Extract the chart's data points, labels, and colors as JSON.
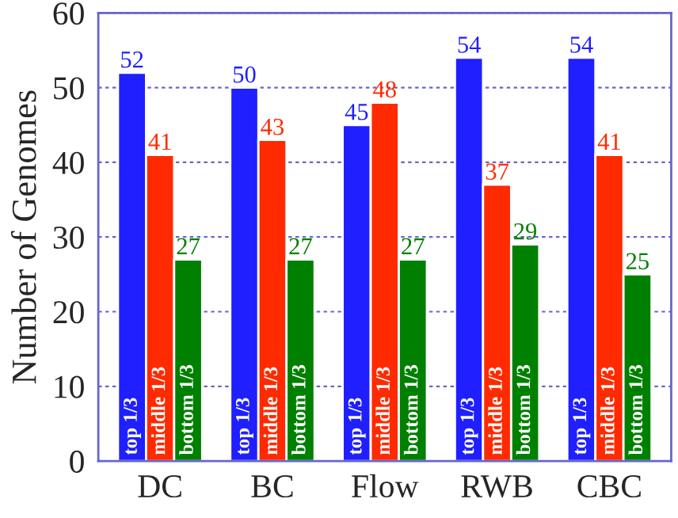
{
  "chart_data": {
    "type": "bar",
    "ylabel": "Number of Genomes",
    "categories": [
      "DC",
      "BC",
      "Flow",
      "RWB",
      "CBC"
    ],
    "series": [
      {
        "name": "top 1/3",
        "color": "#1f1fff",
        "values": [
          52,
          50,
          45,
          54,
          54
        ]
      },
      {
        "name": "middle 1/3",
        "color": "#ff2a00",
        "values": [
          41,
          43,
          48,
          37,
          41
        ]
      },
      {
        "name": "bottom 1/3",
        "color": "#008000",
        "values": [
          27,
          27,
          27,
          29,
          25
        ]
      }
    ],
    "ylim": [
      0,
      60
    ],
    "yticks": [
      0,
      10,
      20,
      30,
      40,
      50,
      60
    ],
    "grid": "y",
    "data_labels": true,
    "legend": false
  }
}
